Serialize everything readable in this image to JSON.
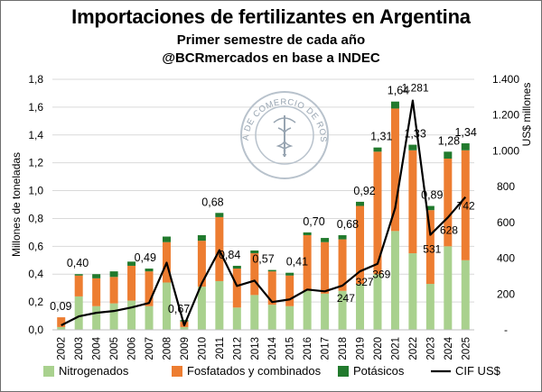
{
  "title": "Importaciones de fertilizantes en Argentina",
  "subtitle_1": "Primer semestre de cada año",
  "subtitle_2": "@BCRmercados en base a INDEC",
  "watermark": {
    "text": "BOLSA DE COMERCIO DE ROSARIO",
    "icon": "caduceus-seal"
  },
  "colors": {
    "nitrogenados": "#a9d18e",
    "fosfatados": "#ed7d31",
    "potasicos": "#217a2d",
    "cif_line": "#000000",
    "grid": "#d9d9d9"
  },
  "chart_data": {
    "type": "bar",
    "stacked": true,
    "title": "Importaciones de fertilizantes en Argentina",
    "subtitle": "Primer semestre de cada año",
    "ylabel": "Millones de toneladas",
    "y2label": "US$ millones",
    "ylim": [
      0,
      1.8
    ],
    "y2lim": [
      0,
      1400
    ],
    "yticks": [
      "0,0",
      "0,2",
      "0,4",
      "0,6",
      "0,8",
      "1,0",
      "1,2",
      "1,4",
      "1,6",
      "1,8"
    ],
    "y2ticks": [
      "-",
      "200",
      "400",
      "600",
      "800",
      "1.000",
      "1.200",
      "1.400"
    ],
    "grid": true,
    "legend_position": "bottom",
    "categories": [
      "2002",
      "2003",
      "2004",
      "2005",
      "2006",
      "2007",
      "2008",
      "2009",
      "2010",
      "2011",
      "2012",
      "2013",
      "2014",
      "2015",
      "2016",
      "2017",
      "2018",
      "2019",
      "2020",
      "2021",
      "2022",
      "2023",
      "2024",
      "2025"
    ],
    "series": [
      {
        "name": "Nitrogenados",
        "axis": "left",
        "values": [
          0.02,
          0.24,
          0.17,
          0.19,
          0.21,
          0.17,
          0.34,
          0.02,
          0.31,
          0.35,
          0.16,
          0.25,
          0.18,
          0.17,
          0.28,
          0.26,
          0.28,
          0.33,
          0.4,
          0.71,
          0.55,
          0.33,
          0.6,
          0.5
        ]
      },
      {
        "name": "Fosfatados y combinados",
        "axis": "left",
        "values": [
          0.07,
          0.15,
          0.2,
          0.19,
          0.25,
          0.25,
          0.29,
          0.04,
          0.33,
          0.46,
          0.28,
          0.3,
          0.24,
          0.22,
          0.4,
          0.37,
          0.37,
          0.56,
          0.88,
          0.88,
          0.74,
          0.53,
          0.63,
          0.79
        ]
      },
      {
        "name": "Potásicos",
        "axis": "left",
        "values": [
          0.0,
          0.01,
          0.03,
          0.04,
          0.03,
          0.02,
          0.04,
          0.01,
          0.04,
          0.03,
          0.02,
          0.02,
          0.01,
          0.02,
          0.02,
          0.03,
          0.03,
          0.03,
          0.03,
          0.05,
          0.04,
          0.03,
          0.05,
          0.05
        ]
      },
      {
        "name": "CIF US$",
        "type": "line",
        "axis": "right",
        "values": [
          25,
          75,
          95,
          105,
          125,
          150,
          375,
          25,
          260,
          445,
          245,
          275,
          155,
          170,
          225,
          215,
          247,
          327,
          369,
          680,
          1281,
          531,
          628,
          742
        ]
      }
    ],
    "total_labels": [
      {
        "index": 0,
        "text": "0,09"
      },
      {
        "index": 1,
        "text": "0,40"
      },
      {
        "index": 5,
        "text": "0,49"
      },
      {
        "index": 7,
        "text": "0,67"
      },
      {
        "index": 9,
        "text": "0,68"
      },
      {
        "index": 10,
        "text": "0,84"
      },
      {
        "index": 12,
        "text": "0,57"
      },
      {
        "index": 14,
        "text": "0,41"
      },
      {
        "index": 15,
        "text": "0,70"
      },
      {
        "index": 17,
        "text": "0,68"
      },
      {
        "index": 18,
        "text": "0,92"
      },
      {
        "index": 19,
        "text": "1,31"
      },
      {
        "index": 20,
        "text": "1,64"
      },
      {
        "index": 21,
        "text": "1,33"
      },
      {
        "index": 22,
        "text": "0,89"
      },
      {
        "index": 23,
        "text": "1,28"
      },
      {
        "index": 24,
        "text": "1,34"
      }
    ],
    "line_labels": [
      {
        "index": 17,
        "text": "247"
      },
      {
        "index": 18,
        "text": "327"
      },
      {
        "index": 19,
        "text": "369"
      },
      {
        "index": 21,
        "text": "1.281"
      },
      {
        "index": 22,
        "text": "531"
      },
      {
        "index": 23,
        "text": "628"
      },
      {
        "index": 24,
        "text": "742"
      }
    ]
  }
}
